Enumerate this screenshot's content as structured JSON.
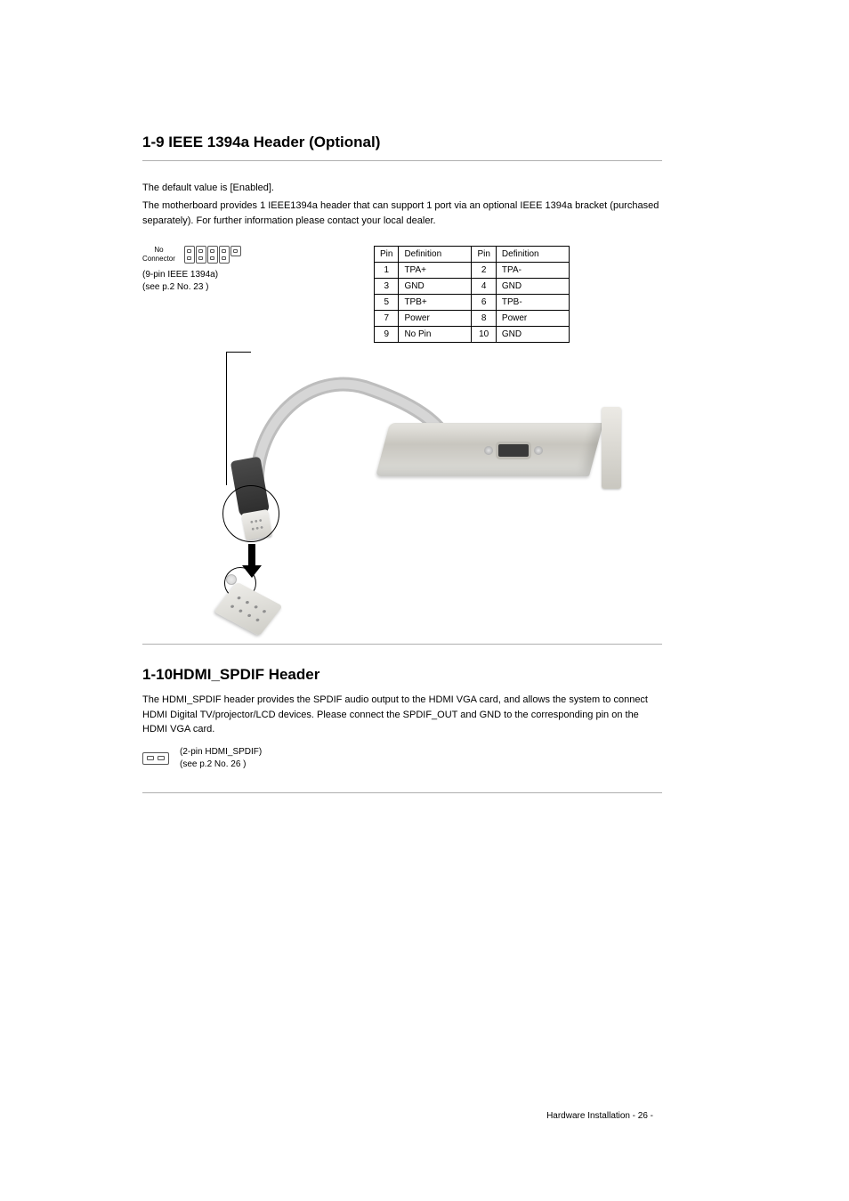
{
  "sections": {
    "ieee": {
      "title": "1-9 IEEE 1394a Header (Optional)",
      "subtitle": "The default value is [Enabled].",
      "body": "The motherboard provides 1 IEEE1394a header that can support 1 port via an optional IEEE 1394a bracket (purchased separately). For further information please contact your local dealer.",
      "header_block": {
        "nc_label": "No\nConnector",
        "caption": "(9-pin IEEE 1394a)\n(see p.2 No.  23  )"
      },
      "pin_table": {
        "headers": [
          "Pin",
          "Definition",
          "Pin",
          "Definition"
        ],
        "rows": [
          [
            "1",
            "TPA+",
            "2",
            "TPA-"
          ],
          [
            "3",
            "GND",
            "4",
            "GND"
          ],
          [
            "5",
            "TPB+",
            "6",
            "TPB-"
          ],
          [
            "7",
            "Power",
            "8",
            "Power"
          ],
          [
            "9",
            "No Pin",
            "10",
            "GND"
          ]
        ],
        "border_color": "#000000",
        "fontsize": 10
      }
    },
    "hda": {
      "title": "1-10HDMI_SPDIF Header",
      "body": "The HDMI_SPDIF header provides the SPDIF audio output to the HDMI VGA card, and allows the system to connect HDMI Digital TV/projector/LCD devices. Please connect the SPDIF_OUT and GND to the corresponding pin on the HDMI VGA card.",
      "caption": "(2-pin HDMI_SPDIF)\n(see p.2 No.  26  )"
    }
  },
  "footer": {
    "text": "Hardware Installation",
    "page": "- 26 -"
  },
  "colors": {
    "separator": "#afafaf",
    "text": "#000000",
    "background": "#ffffff",
    "metal_light": "#e7e6e1",
    "metal_dark": "#c8c6bf",
    "cable_gray": "#bdbdbd",
    "plug_dark": "#3a3a3a"
  }
}
